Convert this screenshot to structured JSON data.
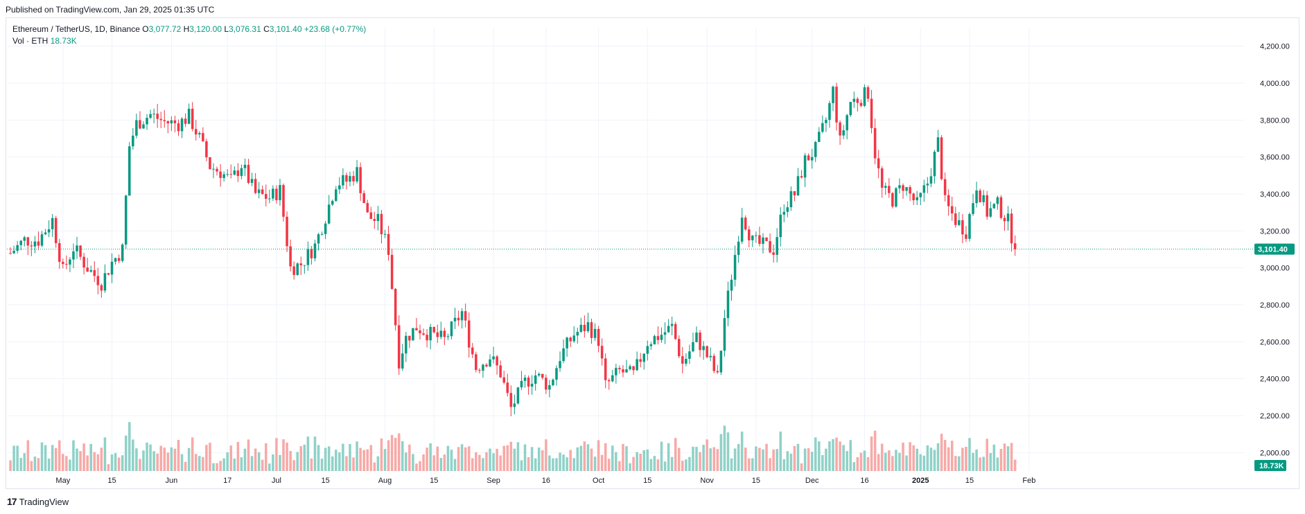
{
  "published": "Published on TradingView.com, Jan 29, 2025 01:35 UTC",
  "legend": {
    "symbol": "Ethereum / TetherUS, 1D, Binance",
    "o_label": "O",
    "o_value": "3,077.72",
    "h_label": "H",
    "h_value": "3,120.00",
    "l_label": "L",
    "l_value": "3,076.31",
    "c_label": "C",
    "c_value": "3,101.40",
    "change": "+23.68 (+0.77%)",
    "vol_label": "Vol · ETH",
    "vol_value": "18.73K"
  },
  "footer": {
    "brand": "TradingView",
    "logo": "17"
  },
  "colors": {
    "up": "#089981",
    "down": "#f23645",
    "vol_up": "#8fd1c7",
    "vol_down": "#f7a9a7",
    "grid": "#f0f3fa"
  },
  "chart_data": {
    "type": "candlestick",
    "series": "ETHUSDT daily",
    "y_ticks": [
      "2,000.00",
      "2,200.00",
      "2,400.00",
      "2,600.00",
      "2,800.00",
      "3,000.00",
      "3,200.00",
      "3,400.00",
      "3,600.00",
      "3,800.00",
      "4,000.00",
      "4,200.00"
    ],
    "y_tick_values": [
      2000,
      2200,
      2400,
      2600,
      2800,
      3000,
      3200,
      3400,
      3600,
      3800,
      4000,
      4200
    ],
    "x_ticks": [
      "May",
      "15",
      "Jun",
      "17",
      "Jul",
      "15",
      "Aug",
      "15",
      "Sep",
      "16",
      "Oct",
      "15",
      "Nov",
      "15",
      "Dec",
      "16",
      "2025",
      "15",
      "Feb"
    ],
    "x_tick_dates": [
      "2024-05-01",
      "2024-05-15",
      "2024-06-01",
      "2024-06-17",
      "2024-07-01",
      "2024-07-15",
      "2024-08-01",
      "2024-08-15",
      "2024-09-01",
      "2024-09-16",
      "2024-10-01",
      "2024-10-15",
      "2024-11-01",
      "2024-11-15",
      "2024-12-01",
      "2024-12-16",
      "2025-01-01",
      "2025-01-15",
      "2025-02-01"
    ],
    "ylim": [
      1900,
      4300
    ],
    "last_price": "3,101.40",
    "last_price_value": 3101.4,
    "last_volume": "18.73K",
    "closes": [
      {
        "d": "2024-04-16",
        "c": 3080
      },
      {
        "d": "2024-04-20",
        "c": 3150
      },
      {
        "d": "2024-04-24",
        "c": 3150
      },
      {
        "d": "2024-04-28",
        "c": 3260
      },
      {
        "d": "2024-05-01",
        "c": 2980
      },
      {
        "d": "2024-05-04",
        "c": 3110
      },
      {
        "d": "2024-05-08",
        "c": 3000
      },
      {
        "d": "2024-05-12",
        "c": 2920
      },
      {
        "d": "2024-05-15",
        "c": 3030
      },
      {
        "d": "2024-05-18",
        "c": 3100
      },
      {
        "d": "2024-05-20",
        "c": 3660
      },
      {
        "d": "2024-05-22",
        "c": 3780
      },
      {
        "d": "2024-05-26",
        "c": 3830
      },
      {
        "d": "2024-05-30",
        "c": 3790
      },
      {
        "d": "2024-06-03",
        "c": 3780
      },
      {
        "d": "2024-06-06",
        "c": 3820
      },
      {
        "d": "2024-06-09",
        "c": 3700
      },
      {
        "d": "2024-06-12",
        "c": 3550
      },
      {
        "d": "2024-06-15",
        "c": 3520
      },
      {
        "d": "2024-06-18",
        "c": 3470
      },
      {
        "d": "2024-06-21",
        "c": 3560
      },
      {
        "d": "2024-06-25",
        "c": 3400
      },
      {
        "d": "2024-06-29",
        "c": 3380
      },
      {
        "d": "2024-07-02",
        "c": 3420
      },
      {
        "d": "2024-07-05",
        "c": 3000
      },
      {
        "d": "2024-07-08",
        "c": 3020
      },
      {
        "d": "2024-07-12",
        "c": 3120
      },
      {
        "d": "2024-07-15",
        "c": 3280
      },
      {
        "d": "2024-07-18",
        "c": 3460
      },
      {
        "d": "2024-07-21",
        "c": 3470
      },
      {
        "d": "2024-07-24",
        "c": 3520
      },
      {
        "d": "2024-07-27",
        "c": 3280
      },
      {
        "d": "2024-07-30",
        "c": 3250
      },
      {
        "d": "2024-08-02",
        "c": 3100
      },
      {
        "d": "2024-08-05",
        "c": 2500
      },
      {
        "d": "2024-08-07",
        "c": 2620
      },
      {
        "d": "2024-08-10",
        "c": 2680
      },
      {
        "d": "2024-08-14",
        "c": 2640
      },
      {
        "d": "2024-08-18",
        "c": 2610
      },
      {
        "d": "2024-08-23",
        "c": 2760
      },
      {
        "d": "2024-08-27",
        "c": 2460
      },
      {
        "d": "2024-08-31",
        "c": 2520
      },
      {
        "d": "2024-09-03",
        "c": 2430
      },
      {
        "d": "2024-09-06",
        "c": 2240
      },
      {
        "d": "2024-09-10",
        "c": 2380
      },
      {
        "d": "2024-09-13",
        "c": 2420
      },
      {
        "d": "2024-09-17",
        "c": 2360
      },
      {
        "d": "2024-09-20",
        "c": 2520
      },
      {
        "d": "2024-09-24",
        "c": 2640
      },
      {
        "d": "2024-09-28",
        "c": 2690
      },
      {
        "d": "2024-10-01",
        "c": 2610
      },
      {
        "d": "2024-10-03",
        "c": 2360
      },
      {
        "d": "2024-10-07",
        "c": 2440
      },
      {
        "d": "2024-10-11",
        "c": 2420
      },
      {
        "d": "2024-10-15",
        "c": 2600
      },
      {
        "d": "2024-10-19",
        "c": 2640
      },
      {
        "d": "2024-10-22",
        "c": 2680
      },
      {
        "d": "2024-10-25",
        "c": 2480
      },
      {
        "d": "2024-10-29",
        "c": 2620
      },
      {
        "d": "2024-11-02",
        "c": 2490
      },
      {
        "d": "2024-11-04",
        "c": 2400
      },
      {
        "d": "2024-11-06",
        "c": 2730
      },
      {
        "d": "2024-11-08",
        "c": 2960
      },
      {
        "d": "2024-11-11",
        "c": 3300
      },
      {
        "d": "2024-11-14",
        "c": 3140
      },
      {
        "d": "2024-11-17",
        "c": 3120
      },
      {
        "d": "2024-11-20",
        "c": 3100
      },
      {
        "d": "2024-11-23",
        "c": 3340
      },
      {
        "d": "2024-11-26",
        "c": 3400
      },
      {
        "d": "2024-11-29",
        "c": 3580
      },
      {
        "d": "2024-12-02",
        "c": 3640
      },
      {
        "d": "2024-12-05",
        "c": 3800
      },
      {
        "d": "2024-12-07",
        "c": 3960
      },
      {
        "d": "2024-12-09",
        "c": 3680
      },
      {
        "d": "2024-12-12",
        "c": 3900
      },
      {
        "d": "2024-12-15",
        "c": 3920
      },
      {
        "d": "2024-12-17",
        "c": 3950
      },
      {
        "d": "2024-12-19",
        "c": 3620
      },
      {
        "d": "2024-12-21",
        "c": 3420
      },
      {
        "d": "2024-12-24",
        "c": 3370
      },
      {
        "d": "2024-12-27",
        "c": 3450
      },
      {
        "d": "2024-12-31",
        "c": 3340
      },
      {
        "d": "2025-01-03",
        "c": 3460
      },
      {
        "d": "2025-01-06",
        "c": 3680
      },
      {
        "d": "2025-01-08",
        "c": 3350
      },
      {
        "d": "2025-01-11",
        "c": 3260
      },
      {
        "d": "2025-01-14",
        "c": 3200
      },
      {
        "d": "2025-01-17",
        "c": 3450
      },
      {
        "d": "2025-01-20",
        "c": 3300
      },
      {
        "d": "2025-01-23",
        "c": 3340
      },
      {
        "d": "2025-01-26",
        "c": 3250
      },
      {
        "d": "2025-01-28",
        "c": 3101
      }
    ]
  }
}
